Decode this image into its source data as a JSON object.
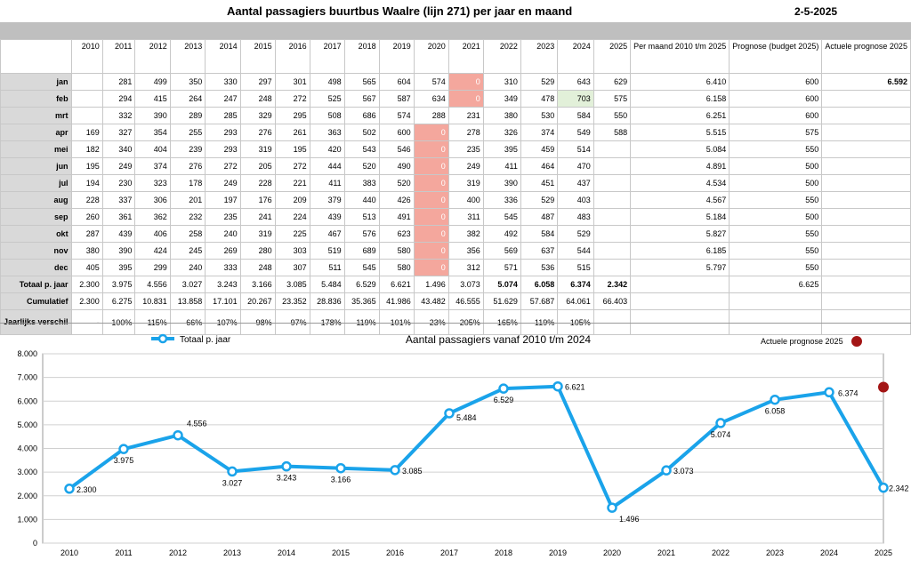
{
  "header": {
    "title": "Aantal passagiers buurtbus Waalre (lijn 271) per jaar en maand",
    "date": "2-5-2025"
  },
  "table": {
    "columns": [
      "",
      "2010",
      "2011",
      "2012",
      "2013",
      "2014",
      "2015",
      "2016",
      "2017",
      "2018",
      "2019",
      "2020",
      "2021",
      "2022",
      "2023",
      "2024",
      "2025",
      "Per maand 2010 t/m 2025",
      "Prognose (budget 2025)",
      "Actuele prognose 2025"
    ],
    "rows": [
      {
        "label": "jan",
        "cells": [
          "",
          "281",
          "499",
          "350",
          "330",
          "297",
          "301",
          "498",
          "565",
          "604",
          "574",
          "0",
          "310",
          "529",
          "643",
          "629",
          "6.410",
          "600",
          "6.592"
        ]
      },
      {
        "label": "feb",
        "cells": [
          "",
          "294",
          "415",
          "264",
          "247",
          "248",
          "272",
          "525",
          "567",
          "587",
          "634",
          "0",
          "349",
          "478",
          "703",
          "575",
          "6.158",
          "600",
          ""
        ]
      },
      {
        "label": "mrt",
        "cells": [
          "",
          "332",
          "390",
          "289",
          "285",
          "329",
          "295",
          "508",
          "686",
          "574",
          "288",
          "231",
          "380",
          "530",
          "584",
          "550",
          "6.251",
          "600",
          ""
        ]
      },
      {
        "label": "apr",
        "cells": [
          "169",
          "327",
          "354",
          "255",
          "293",
          "276",
          "261",
          "363",
          "502",
          "600",
          "0",
          "278",
          "326",
          "374",
          "549",
          "588",
          "5.515",
          "575",
          ""
        ]
      },
      {
        "label": "mei",
        "cells": [
          "182",
          "340",
          "404",
          "239",
          "293",
          "319",
          "195",
          "420",
          "543",
          "546",
          "0",
          "235",
          "395",
          "459",
          "514",
          "",
          "5.084",
          "550",
          ""
        ]
      },
      {
        "label": "jun",
        "cells": [
          "195",
          "249",
          "374",
          "276",
          "272",
          "205",
          "272",
          "444",
          "520",
          "490",
          "0",
          "249",
          "411",
          "464",
          "470",
          "",
          "4.891",
          "500",
          ""
        ]
      },
      {
        "label": "jul",
        "cells": [
          "194",
          "230",
          "323",
          "178",
          "249",
          "228",
          "221",
          "411",
          "383",
          "520",
          "0",
          "319",
          "390",
          "451",
          "437",
          "",
          "4.534",
          "500",
          ""
        ]
      },
      {
        "label": "aug",
        "cells": [
          "228",
          "337",
          "306",
          "201",
          "197",
          "176",
          "209",
          "379",
          "440",
          "426",
          "0",
          "400",
          "336",
          "529",
          "403",
          "",
          "4.567",
          "550",
          ""
        ]
      },
      {
        "label": "sep",
        "cells": [
          "260",
          "361",
          "362",
          "232",
          "235",
          "241",
          "224",
          "439",
          "513",
          "491",
          "0",
          "311",
          "545",
          "487",
          "483",
          "",
          "5.184",
          "500",
          ""
        ]
      },
      {
        "label": "okt",
        "cells": [
          "287",
          "439",
          "406",
          "258",
          "240",
          "319",
          "225",
          "467",
          "576",
          "623",
          "0",
          "382",
          "492",
          "584",
          "529",
          "",
          "5.827",
          "550",
          ""
        ]
      },
      {
        "label": "nov",
        "cells": [
          "380",
          "390",
          "424",
          "245",
          "269",
          "280",
          "303",
          "519",
          "689",
          "580",
          "0",
          "356",
          "569",
          "637",
          "544",
          "",
          "6.185",
          "550",
          ""
        ]
      },
      {
        "label": "dec",
        "cells": [
          "405",
          "395",
          "299",
          "240",
          "333",
          "248",
          "307",
          "511",
          "545",
          "580",
          "0",
          "312",
          "571",
          "536",
          "515",
          "",
          "5.797",
          "550",
          ""
        ]
      },
      {
        "label": "Totaal p. jaar",
        "cells": [
          "2.300",
          "3.975",
          "4.556",
          "3.027",
          "3.243",
          "3.166",
          "3.085",
          "5.484",
          "6.529",
          "6.621",
          "1.496",
          "3.073",
          "5.074",
          "6.058",
          "6.374",
          "2.342",
          "",
          "6.625",
          ""
        ]
      },
      {
        "label": "Cumulatief",
        "cells": [
          "2.300",
          "6.275",
          "10.831",
          "13.858",
          "17.101",
          "20.267",
          "23.352",
          "28.836",
          "35.365",
          "41.986",
          "43.482",
          "46.555",
          "51.629",
          "57.687",
          "64.061",
          "66.403",
          "",
          "",
          ""
        ]
      },
      {
        "label": "Jaarlijks verschil",
        "cells": [
          "-",
          "100%",
          "115%",
          "66%",
          "107%",
          "98%",
          "97%",
          "178%",
          "119%",
          "101%",
          "23%",
          "205%",
          "165%",
          "119%",
          "105%",
          "",
          "",
          "",
          ""
        ]
      }
    ]
  },
  "chart_data": {
    "type": "line",
    "title": "Aantal passagiers vanaf 2010 t/m 2024",
    "x": [
      "2010",
      "2011",
      "2012",
      "2013",
      "2014",
      "2015",
      "2016",
      "2017",
      "2018",
      "2019",
      "2020",
      "2021",
      "2022",
      "2023",
      "2024",
      "2025"
    ],
    "series": [
      {
        "name": "Totaal p. jaar",
        "values": [
          2300,
          3975,
          4556,
          3027,
          3243,
          3166,
          3085,
          5484,
          6529,
          6621,
          1496,
          3073,
          5074,
          6058,
          6374,
          2342
        ],
        "labels": [
          "2.300",
          "3.975",
          "4.556",
          "3.027",
          "3.243",
          "3.166",
          "3.085",
          "5.484",
          "6.529",
          "6.621",
          "1.496",
          "3.073",
          "5.074",
          "6.058",
          "6.374",
          "2.342"
        ],
        "color": "#1aa3ea"
      },
      {
        "name": "Actuele prognose 2025",
        "x": "2025",
        "value": 6592,
        "color": "#a31515"
      }
    ],
    "yticks": [
      "8.000",
      "7.000",
      "6.000",
      "5.000",
      "4.000",
      "3.000",
      "2.000",
      "1.000",
      "0"
    ],
    "ylim": [
      0,
      8000
    ],
    "grid": true,
    "legend": "top"
  }
}
